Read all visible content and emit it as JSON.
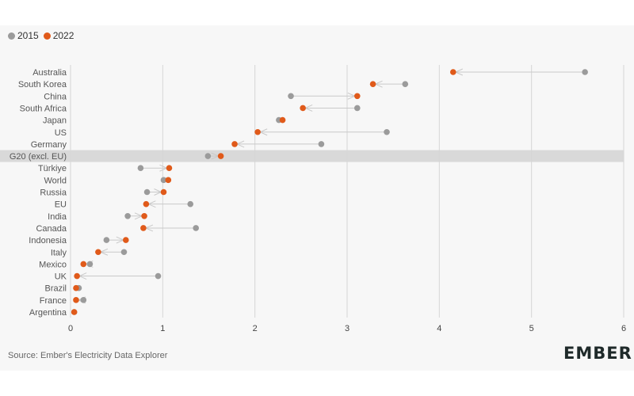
{
  "legend": [
    {
      "label": "2015",
      "color": "#9b9b9b"
    },
    {
      "label": "2022",
      "color": "#e05a1a"
    }
  ],
  "colors": {
    "v2015": "#9b9b9b",
    "v2022": "#e05a1a",
    "connector": "#c9c9c9",
    "highlight": "#d9d9d9",
    "grid": "#d6d6d6"
  },
  "source": "Source: Ember's Electricity Data Explorer",
  "logo": "EMBER",
  "chart_data": {
    "type": "scatter",
    "subtype": "dumbbell",
    "title": "",
    "xlabel": "",
    "ylabel": "",
    "xlim": [
      0,
      6
    ],
    "xticks": [
      0,
      1,
      2,
      3,
      4,
      5,
      6
    ],
    "grid": "vertical",
    "legend_placement": "top-left",
    "highlighted_category": "G20 (excl. EU)",
    "categories": [
      "Australia",
      "South Korea",
      "China",
      "South Africa",
      "Japan",
      "US",
      "Germany",
      "G20 (excl. EU)",
      "Türkiye",
      "World",
      "Russia",
      "EU",
      "India",
      "Canada",
      "Indonesia",
      "Italy",
      "Mexico",
      "UK",
      "Brazil",
      "France",
      "Argentina"
    ],
    "series": [
      {
        "name": "2015",
        "values": [
          5.58,
          3.63,
          2.39,
          3.11,
          2.26,
          3.43,
          2.72,
          1.49,
          0.76,
          1.01,
          0.83,
          1.3,
          0.62,
          1.36,
          0.39,
          0.58,
          0.21,
          0.95,
          0.09,
          0.14,
          0.04
        ]
      },
      {
        "name": "2022",
        "values": [
          4.15,
          3.28,
          3.11,
          2.52,
          2.3,
          2.03,
          1.78,
          1.63,
          1.07,
          1.06,
          1.01,
          0.82,
          0.8,
          0.79,
          0.6,
          0.3,
          0.14,
          0.07,
          0.06,
          0.06,
          0.04
        ]
      }
    ]
  }
}
